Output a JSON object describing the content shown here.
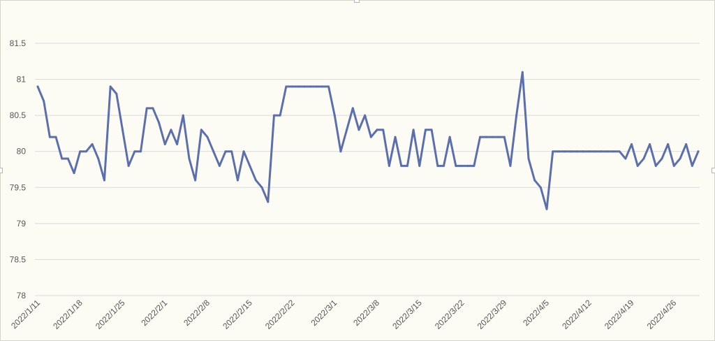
{
  "chart_data": {
    "type": "line",
    "title": "",
    "xlabel": "",
    "ylabel": "",
    "ylim": [
      78,
      81.5
    ],
    "y_ticks": [
      78,
      78.5,
      79,
      79.5,
      80,
      80.5,
      81,
      81.5
    ],
    "grid": "horizontal",
    "legend": "none",
    "line_color": "#5b6fae",
    "x_tick_labels": [
      "2022/1/11",
      "2022/1/18",
      "2022/1/25",
      "2022/2/1",
      "2022/2/8",
      "2022/2/15",
      "2022/2/22",
      "2022/3/1",
      "2022/3/8",
      "2022/3/15",
      "2022/3/22",
      "2022/3/29",
      "2022/4/5",
      "2022/4/12",
      "2022/4/19",
      "2022/4/26"
    ],
    "series": [
      {
        "values": [
          80.9,
          80.7,
          80.2,
          80.2,
          79.9,
          79.9,
          79.7,
          80.0,
          80.0,
          80.1,
          79.9,
          79.6,
          80.9,
          80.8,
          80.3,
          79.8,
          80.0,
          80.0,
          80.6,
          80.6,
          80.4,
          80.1,
          80.3,
          80.1,
          80.5,
          79.9,
          79.6,
          80.3,
          80.2,
          80.0,
          79.8,
          80.0,
          80.0,
          79.6,
          80.0,
          79.8,
          79.6,
          79.5,
          79.3,
          80.5,
          80.5,
          80.9,
          80.9,
          80.9,
          80.9,
          80.9,
          80.9,
          80.9,
          80.9,
          80.5,
          80.0,
          80.3,
          80.6,
          80.3,
          80.5,
          80.2,
          80.3,
          80.3,
          79.8,
          80.2,
          79.8,
          79.8,
          80.3,
          79.8,
          80.3,
          80.3,
          79.8,
          79.8,
          80.2,
          79.8,
          79.8,
          79.8,
          79.8,
          80.2,
          80.2,
          80.2,
          80.2,
          80.2,
          79.8,
          80.5,
          81.1,
          79.9,
          79.6,
          79.5,
          79.2,
          80.0,
          80.0,
          80.0,
          80.0,
          80.0,
          80.0,
          80.0,
          80.0,
          80.0,
          80.0,
          80.0,
          80.0,
          79.9,
          80.1,
          79.8,
          79.9,
          80.1,
          79.8,
          79.9,
          80.1,
          79.8,
          79.9,
          80.1,
          79.8,
          80.0
        ]
      }
    ]
  }
}
